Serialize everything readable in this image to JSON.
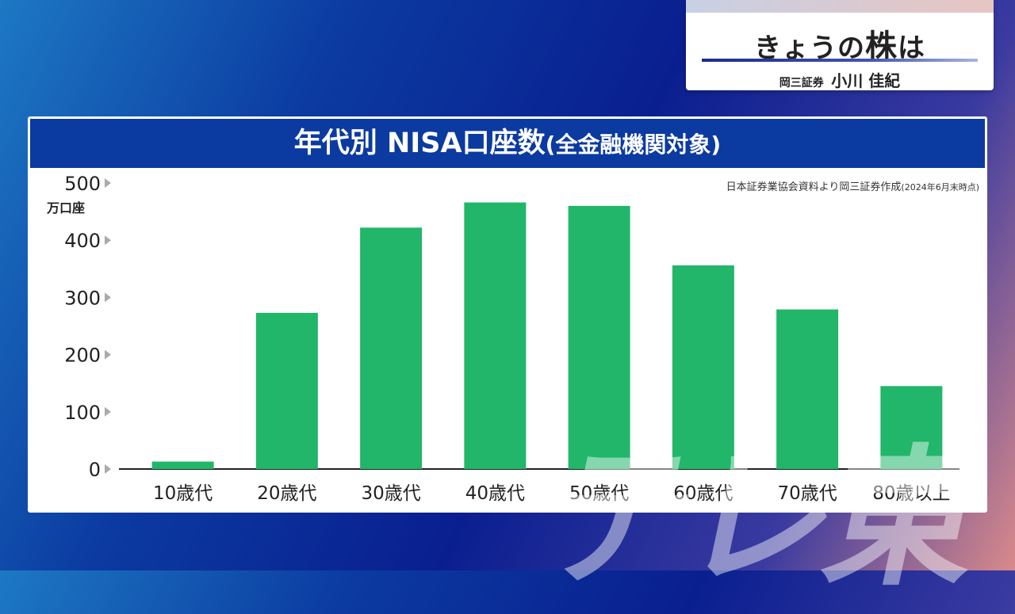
{
  "corner": {
    "title_pre": "きょうの",
    "title_big": "株",
    "title_post": "は",
    "firm": "岡三証券",
    "person": "小川 佳紀"
  },
  "chart_data": {
    "type": "bar",
    "title": "年代別 NISA口座数",
    "title_paren": "(全金融機関対象)",
    "source": "日本証券業協会資料より岡三証券作成",
    "source_date": "(2024年6月末時点)",
    "ylabel": "万口座",
    "ylim": [
      0,
      500
    ],
    "yticks": [
      0,
      100,
      200,
      300,
      400,
      500
    ],
    "categories": [
      "10歳代",
      "20歳代",
      "30歳代",
      "40歳代",
      "50歳代",
      "60歳代",
      "70歳代",
      "80歳以上"
    ],
    "values": [
      13,
      273,
      422,
      466,
      460,
      356,
      279,
      145
    ],
    "bar_color": "#21b66a"
  },
  "watermark": "テレ東"
}
